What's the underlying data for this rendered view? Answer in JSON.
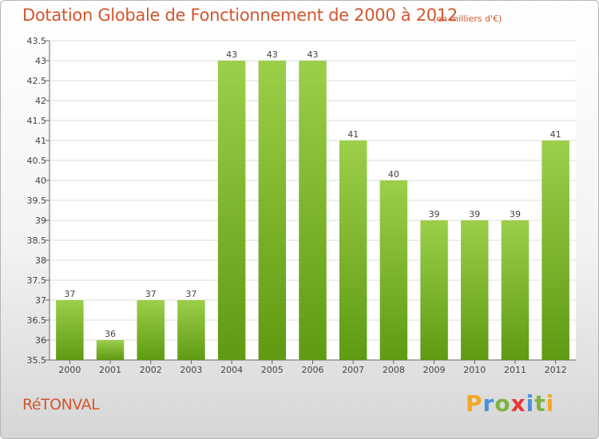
{
  "title": "Dotation Globale de Fonctionnement de 2000 à 2012",
  "subtitle": "(en milliers d'€)",
  "place": "RéTONVAL",
  "logo": {
    "letters": [
      "P",
      "r",
      "o",
      "x",
      "i",
      "t",
      "i"
    ],
    "colors": [
      "#f5a623",
      "#4a90d9",
      "#7cb342",
      "#e53935",
      "#4a90d9",
      "#7cb342",
      "#f5a623"
    ]
  },
  "colors": {
    "bar_top": "#9ccf4a",
    "bar_bottom": "#5f9a12",
    "title": "#d2562e",
    "grid": "#dcdcdc"
  },
  "chart_data": {
    "type": "bar",
    "title": "Dotation Globale de Fonctionnement de 2000 à 2012",
    "subtitle": "(en milliers d'€)",
    "xlabel": "",
    "ylabel": "",
    "categories": [
      "2000",
      "2001",
      "2002",
      "2003",
      "2004",
      "2005",
      "2006",
      "2007",
      "2008",
      "2009",
      "2010",
      "2011",
      "2012"
    ],
    "values": [
      37,
      36,
      37,
      37,
      43,
      43,
      43,
      41,
      40,
      39,
      39,
      39,
      41
    ],
    "data_labels": [
      "37",
      "36",
      "37",
      "37",
      "43",
      "43",
      "43",
      "41",
      "40",
      "39",
      "39",
      "39",
      "41"
    ],
    "ylim": [
      35.5,
      43.5
    ],
    "yticks": [
      "35.5",
      "36",
      "36.5",
      "37",
      "37.5",
      "38",
      "38.5",
      "39",
      "39.5",
      "40",
      "40.5",
      "41",
      "41.5",
      "42",
      "42.5",
      "43",
      "43.5"
    ],
    "grid": true,
    "legend": "none"
  }
}
